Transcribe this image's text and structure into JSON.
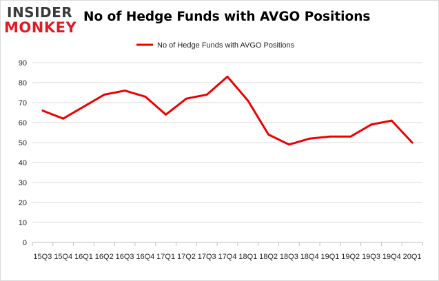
{
  "brand": {
    "line1": "INSIDER",
    "line2": "MONKEY",
    "color_dark": "#3a3a3a",
    "color_red": "#e01b24"
  },
  "header": {
    "title": "No of Hedge Funds with AVGO Positions"
  },
  "chart_data": {
    "type": "line",
    "title": "No of Hedge Funds with AVGO Positions",
    "xlabel": "",
    "ylabel": "",
    "categories": [
      "15Q3",
      "15Q4",
      "16Q1",
      "16Q2",
      "16Q3",
      "16Q4",
      "17Q1",
      "17Q2",
      "17Q3",
      "17Q4",
      "18Q1",
      "18Q2",
      "18Q3",
      "18Q4",
      "19Q1",
      "19Q2",
      "19Q3",
      "19Q4",
      "20Q1"
    ],
    "series": [
      {
        "name": "No of Hedge Funds with AVGO Positions",
        "color": "#ee0000",
        "values": [
          66,
          62,
          68,
          74,
          76,
          73,
          64,
          72,
          74,
          83,
          71,
          54,
          49,
          52,
          53,
          53,
          59,
          61,
          50
        ]
      }
    ],
    "ylim": [
      0,
      90
    ],
    "yticks": [
      0,
      10,
      20,
      30,
      40,
      50,
      60,
      70,
      80,
      90
    ],
    "grid": true,
    "legend_position": "top"
  }
}
